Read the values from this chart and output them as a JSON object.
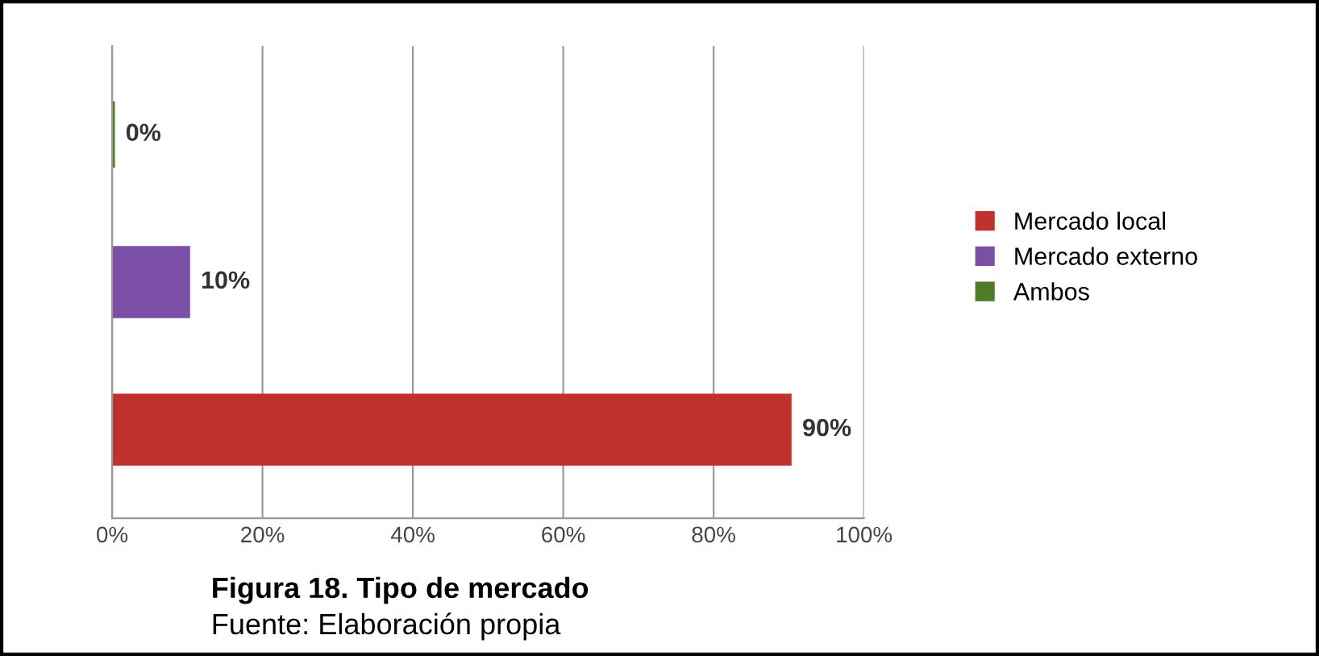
{
  "chart_data": {
    "type": "bar",
    "orientation": "horizontal",
    "categories": [
      null,
      null,
      null
    ],
    "series": [
      {
        "name": "Mercado local",
        "color": "#c0302c",
        "values": [
          null,
          null,
          90
        ],
        "value_labels": [
          null,
          null,
          "90%"
        ]
      },
      {
        "name": "Mercado externo",
        "color": "#7b4fa6",
        "values": [
          null,
          10,
          null
        ],
        "value_labels": [
          null,
          "10%",
          null
        ]
      },
      {
        "name": "Ambos",
        "color": "#4f7a28",
        "values": [
          0,
          null,
          null
        ],
        "value_labels": [
          "0%",
          null,
          null
        ]
      }
    ],
    "xlim": [
      0,
      100
    ],
    "xticks": [
      {
        "value": 0,
        "label": "0%"
      },
      {
        "value": 20,
        "label": "20%"
      },
      {
        "value": 40,
        "label": "40%"
      },
      {
        "value": 60,
        "label": "60%"
      },
      {
        "value": 80,
        "label": "80%"
      },
      {
        "value": 100,
        "label": "100%"
      }
    ],
    "grid": "x",
    "legend": "right",
    "tick_labels": "x",
    "annotations": [
      "Figura 18. Tipo de mercado",
      "Fuente: Elaboración propia"
    ]
  }
}
